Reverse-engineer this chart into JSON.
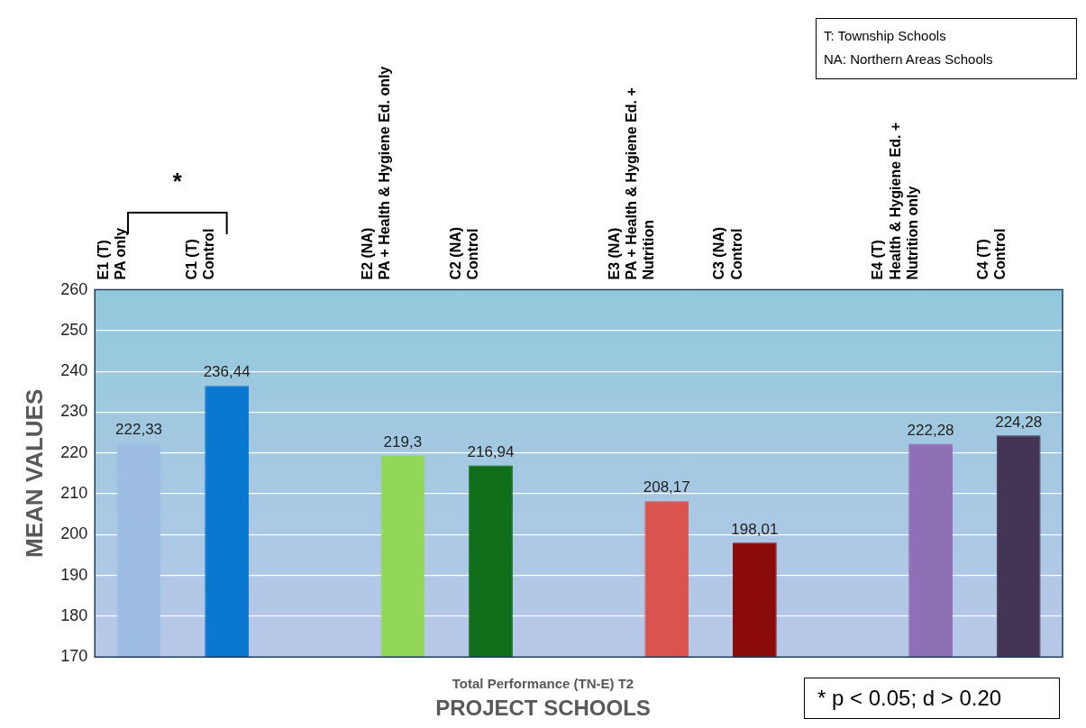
{
  "chart_data": {
    "type": "bar",
    "title": "Total Performance (TN-E) T2",
    "xlabel": "PROJECT SCHOOLS",
    "ylabel": "MEAN VALUES",
    "categories": [
      "E1 (T)\nPA only",
      "C1 (T)\nControl",
      null,
      "E2 (NA)\nPA + Health & Hygiene Ed. only",
      "C2 (NA)\nControl",
      null,
      "E3 (NA)\nPA + Health & Hygiene Ed. +\nNutrition",
      "C3 (NA)\nControl",
      null,
      "E4 (T)\nHealth & Hygiene Ed. +\nNutrition only",
      "C4 (T)\nControl"
    ],
    "values": [
      222.33,
      236.44,
      null,
      219.3,
      216.94,
      null,
      208.17,
      198.01,
      null,
      222.28,
      224.28
    ],
    "value_labels": [
      "222,33",
      "236,44",
      null,
      "219,3",
      "216,94",
      null,
      "208,17",
      "198,01",
      null,
      "222,28",
      "224,28"
    ],
    "colors": [
      "#9dbde3",
      "#0a78d0",
      "#000000",
      "#93d75a",
      "#0f6e1a",
      "#000000",
      "#d9534f",
      "#8b0a0a",
      "#000000",
      "#8f6fb5",
      "#453555"
    ],
    "ylim": [
      170,
      260
    ],
    "yticks": [
      170,
      180,
      190,
      200,
      210,
      220,
      230,
      240,
      250,
      260
    ],
    "grid": "y",
    "annotations": [
      "T: Township Schools",
      "NA: Northern Areas Schools",
      "*",
      "* p < 0.05; d > 0.20"
    ]
  }
}
